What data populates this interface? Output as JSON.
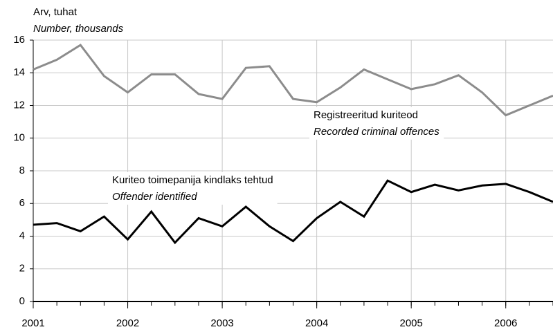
{
  "chart_data": {
    "type": "line",
    "y_label": "Arv, tuhat",
    "y_label_en": "Number, thousands",
    "categories": [
      "2001",
      null,
      null,
      null,
      "2002",
      null,
      null,
      null,
      "2003",
      null,
      null,
      null,
      "2004",
      null,
      null,
      null,
      "2005",
      null,
      null,
      null,
      "2006",
      null,
      null
    ],
    "series": [
      {
        "name": "Registreeritud kuriteod",
        "name_en": "Recorded criminal offences",
        "color": "#8c8c8c",
        "values": [
          14.2,
          14.8,
          15.7,
          13.8,
          12.8,
          13.9,
          13.9,
          12.7,
          12.4,
          14.3,
          14.4,
          12.4,
          12.2,
          13.1,
          14.2,
          13.6,
          13.0,
          13.3,
          13.85,
          12.8,
          11.4,
          12.0,
          12.6
        ]
      },
      {
        "name": "Kuriteo toimepanija kindlaks tehtud",
        "name_en": "Offender identified",
        "color": "#000000",
        "values": [
          4.7,
          4.8,
          4.3,
          5.2,
          3.8,
          5.5,
          3.6,
          5.1,
          4.6,
          5.8,
          4.6,
          3.7,
          5.1,
          6.1,
          5.2,
          7.4,
          6.7,
          7.15,
          6.8,
          7.1,
          7.2,
          6.7,
          6.1
        ]
      }
    ],
    "ylim": [
      0,
      16
    ],
    "yticks": [
      0,
      2,
      4,
      6,
      8,
      10,
      12,
      14,
      16
    ],
    "grid": true
  }
}
